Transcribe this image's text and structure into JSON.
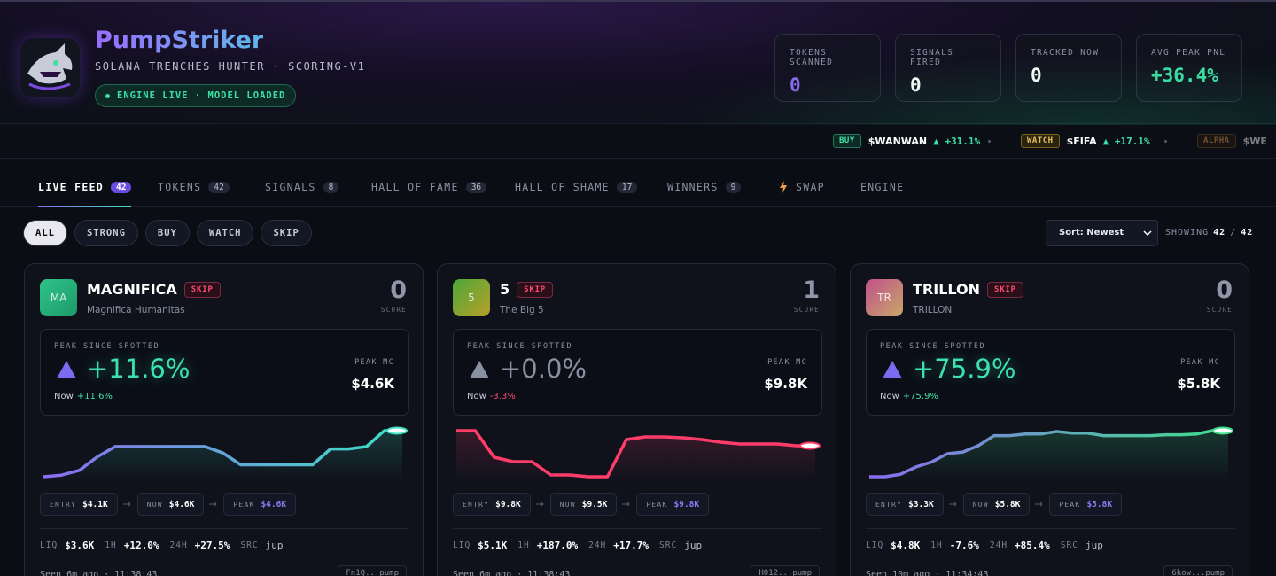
{
  "header": {
    "title": "PumpStriker",
    "subtitle": "SOLANA TRENCHES HUNTER · SCORING-V1",
    "status": "ENGINE LIVE · MODEL LOADED"
  },
  "stats": [
    {
      "label": "TOKENS SCANNED",
      "value": "0"
    },
    {
      "label": "SIGNALS FIRED",
      "value": "0"
    },
    {
      "label": "TRACKED NOW",
      "value": "0"
    },
    {
      "label": "AVG PEAK PNL",
      "value": "+36.4%"
    }
  ],
  "ticker": [
    {
      "tag": "BUY",
      "symbol": "$WANWAN",
      "change": "▲ +31.1%"
    },
    {
      "tag": "WATCH",
      "symbol": "$FIFA",
      "change": "▲ +17.1%"
    },
    {
      "tag": "ALPHA",
      "symbol": "$WE"
    }
  ],
  "tabs": [
    {
      "label": "LIVE FEED",
      "count": "42"
    },
    {
      "label": "TOKENS",
      "count": "42"
    },
    {
      "label": "SIGNALS",
      "count": "8"
    },
    {
      "label": "HALL OF FAME",
      "count": "36"
    },
    {
      "label": "HALL OF SHAME",
      "count": "17"
    },
    {
      "label": "WINNERS",
      "count": "9"
    },
    {
      "label": "SWAP"
    },
    {
      "label": "ENGINE"
    }
  ],
  "filters": [
    "ALL",
    "STRONG",
    "BUY",
    "WATCH",
    "SKIP"
  ],
  "sort": "Sort: Newest",
  "showing": {
    "label": "SHOWING",
    "shown": "42",
    "sep": "/",
    "total": "42"
  },
  "cards": [
    {
      "avatar": "MA",
      "name": "MAGNIFICA",
      "tag": "SKIP",
      "subtitle": "Magnifica Humanitas",
      "score": "0",
      "score_label": "SCORE",
      "peak_label": "PEAK SINCE SPOTTED",
      "peak": "+11.6%",
      "now_label": "Now",
      "now": "+11.6%",
      "peak_mc_label": "PEAK MC",
      "peak_mc": "$4.6K",
      "sparkline": [
        0,
        2,
        8,
        25,
        38,
        38,
        38,
        38,
        38,
        38,
        30,
        15,
        15,
        15,
        15,
        15,
        35,
        35,
        38,
        58,
        58
      ],
      "entry": {
        "label": "ENTRY",
        "value": "$4.1K"
      },
      "now_price": {
        "label": "NOW",
        "value": "$4.6K"
      },
      "peak_price": {
        "label": "PEAK",
        "value": "$4.6K"
      },
      "stats": [
        {
          "label": "LIQ",
          "value": "$3.6K"
        },
        {
          "label": "1H",
          "value": "+12.0%"
        },
        {
          "label": "24H",
          "value": "+27.5%"
        },
        {
          "label": "SRC",
          "value": "jup"
        }
      ],
      "seen": "Seen 6m ago · 11:38:43",
      "address": "Fn1Q...pump"
    },
    {
      "avatar": "5",
      "name": "5",
      "tag": "SKIP",
      "subtitle": "The Big 5",
      "score": "1",
      "score_label": "SCORE",
      "peak_label": "PEAK SINCE SPOTTED",
      "peak": "+0.0%",
      "now_label": "Now",
      "now": "-3.3%",
      "peak_mc_label": "PEAK MC",
      "peak_mc": "$9.8K",
      "sparkline": [
        55,
        55,
        25,
        20,
        20,
        5,
        5,
        3,
        3,
        45,
        48,
        48,
        47,
        45,
        42,
        40,
        40,
        40,
        38,
        38
      ],
      "entry": {
        "label": "ENTRY",
        "value": "$9.8K"
      },
      "now_price": {
        "label": "NOW",
        "value": "$9.5K"
      },
      "peak_price": {
        "label": "PEAK",
        "value": "$9.8K"
      },
      "stats": [
        {
          "label": "LIQ",
          "value": "$5.1K"
        },
        {
          "label": "1H",
          "value": "+187.0%"
        },
        {
          "label": "24H",
          "value": "+17.7%"
        },
        {
          "label": "SRC",
          "value": "jup"
        }
      ],
      "seen": "Seen 6m ago · 11:38:43",
      "address": "H012...pump"
    },
    {
      "avatar": "TR",
      "name": "TRILLON",
      "tag": "SKIP",
      "subtitle": "TRILLON",
      "score": "0",
      "score_label": "SCORE",
      "peak_label": "PEAK SINCE SPOTTED",
      "peak": "+75.9%",
      "now_label": "Now",
      "now": "+75.9%",
      "peak_mc_label": "PEAK MC",
      "peak_mc": "$5.8K",
      "sparkline": [
        0,
        0,
        3,
        12,
        18,
        28,
        30,
        38,
        50,
        50,
        52,
        52,
        55,
        53,
        53,
        50,
        50,
        50,
        50,
        51,
        51,
        52,
        56,
        56
      ],
      "entry": {
        "label": "ENTRY",
        "value": "$3.3K"
      },
      "now_price": {
        "label": "NOW",
        "value": "$5.8K"
      },
      "peak_price": {
        "label": "PEAK",
        "value": "$5.8K"
      },
      "stats": [
        {
          "label": "LIQ",
          "value": "$4.8K"
        },
        {
          "label": "1H",
          "value": "-7.6%"
        },
        {
          "label": "24H",
          "value": "+85.4%"
        },
        {
          "label": "SRC",
          "value": "jup"
        }
      ],
      "seen": "Seen 10m ago · 11:34:43",
      "address": "6kow...pump"
    }
  ]
}
